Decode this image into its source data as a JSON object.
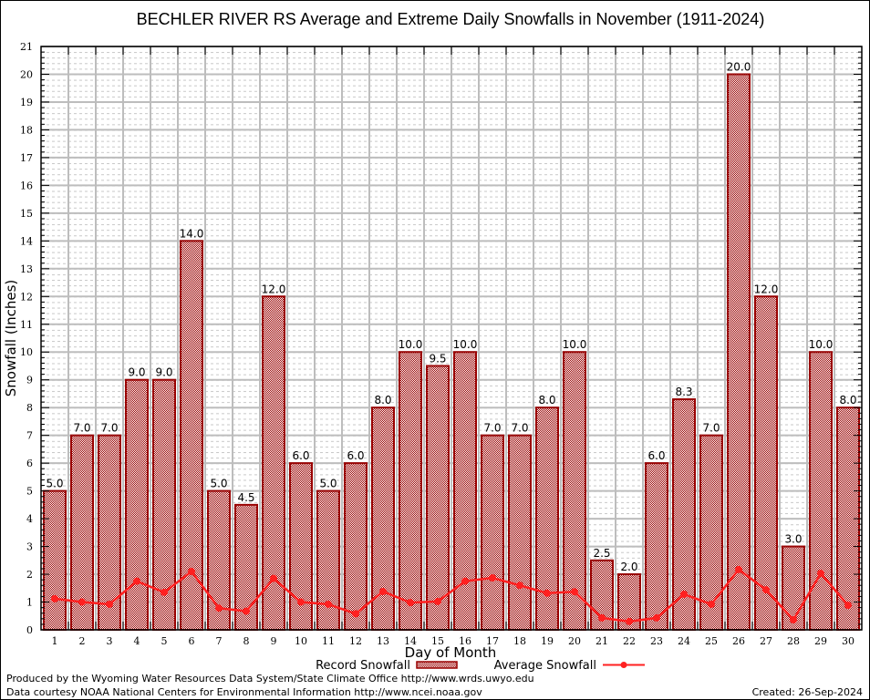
{
  "chart_data": {
    "type": "bar",
    "title": "BECHLER RIVER RS Average and Extreme Daily Snowfalls in November (1911-2024)",
    "xlabel": "Day of Month",
    "ylabel": "Snowfall (Inches)",
    "ylim": [
      0,
      21
    ],
    "xlim": [
      0.5,
      30.5
    ],
    "grid": true,
    "yticks": [
      "0",
      "1",
      "2",
      "3",
      "4",
      "5",
      "6",
      "7",
      "8",
      "9",
      "10",
      "11",
      "12",
      "13",
      "14",
      "15",
      "16",
      "17",
      "18",
      "19",
      "20",
      "21"
    ],
    "categories": [
      "1",
      "2",
      "3",
      "4",
      "5",
      "6",
      "7",
      "8",
      "9",
      "10",
      "11",
      "12",
      "13",
      "14",
      "15",
      "16",
      "17",
      "18",
      "19",
      "20",
      "21",
      "22",
      "23",
      "24",
      "25",
      "26",
      "27",
      "28",
      "29",
      "30"
    ],
    "series": [
      {
        "name": "Record Snowfall",
        "type": "bar",
        "color": "#990000",
        "values": [
          5.0,
          7.0,
          7.0,
          9.0,
          9.0,
          14.0,
          5.0,
          4.5,
          12.0,
          6.0,
          5.0,
          6.0,
          8.0,
          10.0,
          9.5,
          10.0,
          7.0,
          7.0,
          8.0,
          10.0,
          2.5,
          2.0,
          6.0,
          8.3,
          7.0,
          20.0,
          12.0,
          3.0,
          10.0,
          8.0
        ],
        "labels": [
          "5.0",
          "7.0",
          "7.0",
          "9.0",
          "9.0",
          "14.0",
          "5.0",
          "4.5",
          "12.0",
          "6.0",
          "5.0",
          "6.0",
          "8.0",
          "10.0",
          "9.5",
          "10.0",
          "7.0",
          "7.0",
          "8.0",
          "10.0",
          "2.5",
          "2.0",
          "6.0",
          "8.3",
          "7.0",
          "20.0",
          "12.0",
          "3.0",
          "10.0",
          "8.0"
        ]
      },
      {
        "name": "Average Snowfall",
        "type": "line",
        "color": "#ff2020",
        "values": [
          1.12,
          1.0,
          0.92,
          1.75,
          1.35,
          2.1,
          0.78,
          0.67,
          1.85,
          1.0,
          0.92,
          0.58,
          1.38,
          0.98,
          1.02,
          1.75,
          1.87,
          1.6,
          1.32,
          1.37,
          0.43,
          0.3,
          0.43,
          1.28,
          0.92,
          2.17,
          1.44,
          0.36,
          2.03,
          0.88
        ]
      }
    ],
    "legend": {
      "placement": "bottom-center",
      "entries": [
        "Record Snowfall",
        "Average Snowfall"
      ]
    }
  },
  "footer": {
    "line1": "Produced by the Wyoming Water Resources Data System/State Climate Office http://www.wrds.uwyo.edu",
    "line2": "Data courtesy NOAA National Centers for Environmental Information http://www.ncei.noaa.gov",
    "created": "Created: 26-Sep-2024"
  }
}
